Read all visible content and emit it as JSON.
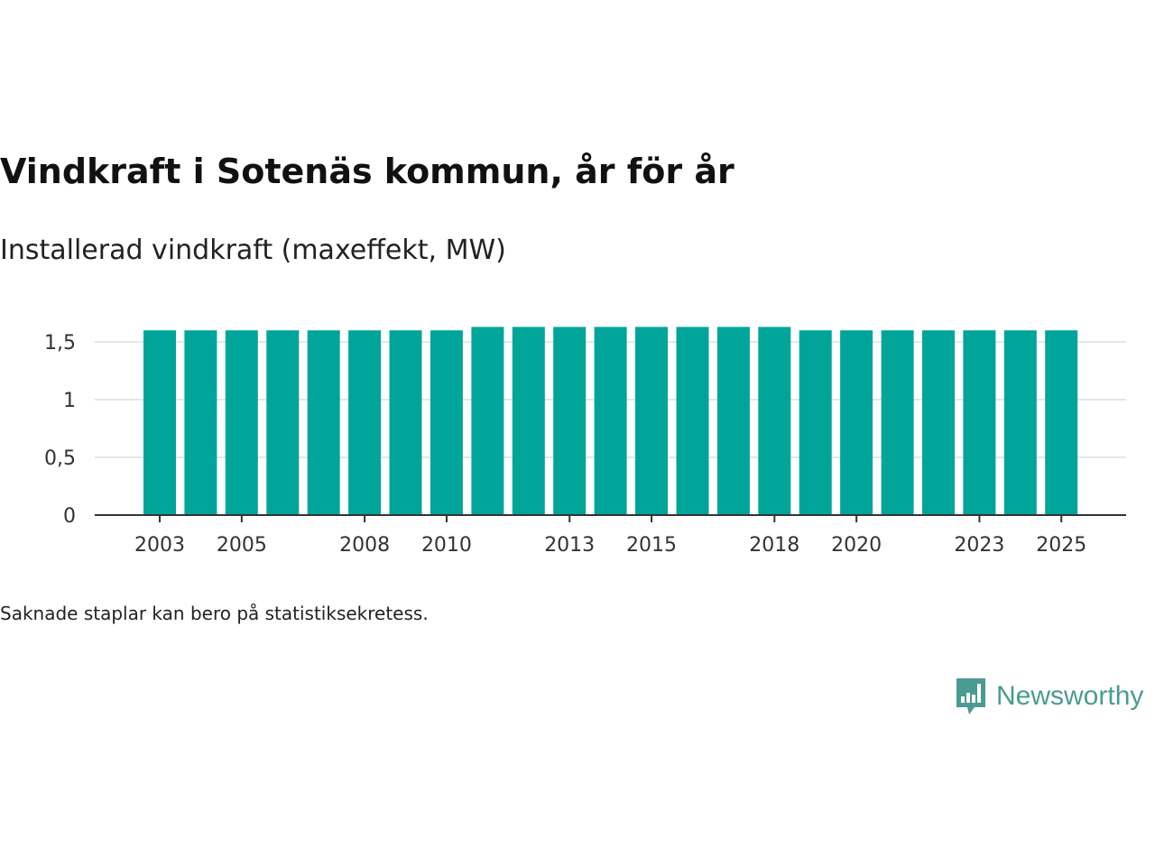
{
  "title": "Vindkraft i Sotenäs kommun, år för år",
  "subtitle": "Installerad vindkraft (maxeffekt, MW)",
  "note": "Saknade staplar kan bero på statistiksekretess.",
  "brand": {
    "name": "Newsworthy",
    "icon": "newsworthy-logo-icon",
    "color": "#4a9b92"
  },
  "colors": {
    "bar": "#00a59a",
    "gridline": "#dddddd",
    "axis": "#333333"
  },
  "chart_data": {
    "type": "bar",
    "title": "Vindkraft i Sotenäs kommun, år för år",
    "subtitle": "Installerad vindkraft (maxeffekt, MW)",
    "xlabel": "",
    "ylabel": "",
    "grid": true,
    "legend": "none",
    "ylim": [
      0,
      1.6
    ],
    "y_ticks": [
      0,
      0.5,
      1,
      1.5
    ],
    "y_tick_labels": [
      "0",
      "0,5",
      "1",
      "1,5"
    ],
    "x_tick_labels": [
      "2003",
      "2005",
      "2008",
      "2010",
      "2013",
      "2015",
      "2018",
      "2020",
      "2023",
      "2025"
    ],
    "categories": [
      "2003",
      "2004",
      "2005",
      "2006",
      "2007",
      "2008",
      "2009",
      "2010",
      "2011",
      "2012",
      "2013",
      "2014",
      "2015",
      "2016",
      "2017",
      "2018",
      "2019",
      "2020",
      "2021",
      "2022",
      "2023",
      "2024",
      "2025"
    ],
    "values": [
      1.6,
      1.6,
      1.6,
      1.6,
      1.6,
      1.6,
      1.6,
      1.6,
      1.63,
      1.63,
      1.63,
      1.63,
      1.63,
      1.63,
      1.63,
      1.63,
      1.6,
      1.6,
      1.6,
      1.6,
      1.6,
      1.6,
      1.6
    ]
  }
}
